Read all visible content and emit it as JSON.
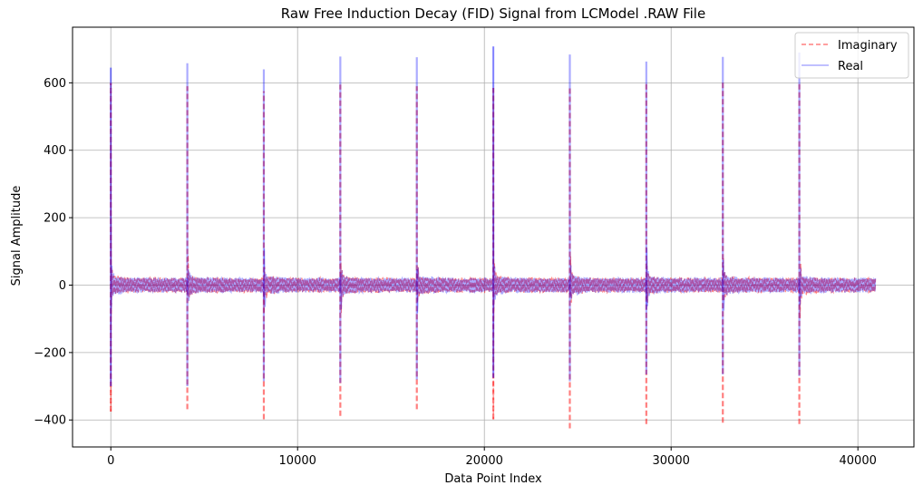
{
  "chart_data": {
    "type": "line",
    "title": "Raw Free Induction Decay (FID) Signal from LCModel .RAW File",
    "xlabel": "Data Point Index",
    "ylabel": "Signal Amplitude",
    "xlim": [
      -2050,
      43000
    ],
    "ylim": [
      -480,
      765
    ],
    "xticks": [
      0,
      10000,
      20000,
      30000,
      40000
    ],
    "xtick_labels": [
      "0",
      "10000",
      "20000",
      "30000",
      "40000"
    ],
    "yticks": [
      -400,
      -200,
      0,
      200,
      400,
      600
    ],
    "ytick_labels": [
      "−400",
      "−200",
      "0",
      "200",
      "400",
      "600"
    ],
    "grid": true,
    "legend_position": "top-right",
    "n_points": 40960,
    "segment_length": 4096,
    "series": [
      {
        "name": "Imaginary",
        "color": "#ff0000",
        "alpha": 0.5,
        "linestyle": "dashed",
        "noise_band": [
          -22,
          22
        ],
        "peaks": [
          {
            "x": 0,
            "max": 600,
            "min": -375
          },
          {
            "x": 4096,
            "max": 590,
            "min": -368
          },
          {
            "x": 8192,
            "max": 575,
            "min": -398
          },
          {
            "x": 12288,
            "max": 595,
            "min": -388
          },
          {
            "x": 16384,
            "max": 590,
            "min": -368
          },
          {
            "x": 20480,
            "max": 585,
            "min": -398
          },
          {
            "x": 24576,
            "max": 590,
            "min": -425
          },
          {
            "x": 28672,
            "max": 600,
            "min": -412
          },
          {
            "x": 32768,
            "max": 600,
            "min": -408
          },
          {
            "x": 36864,
            "max": 600,
            "min": -412
          }
        ]
      },
      {
        "name": "Real",
        "color": "#0000ff",
        "alpha": 0.33,
        "linestyle": "solid",
        "noise_band": [
          -22,
          22
        ],
        "peaks": [
          {
            "x": 0,
            "max": 645,
            "min": -300
          },
          {
            "x": 4096,
            "max": 658,
            "min": -300
          },
          {
            "x": 8192,
            "max": 640,
            "min": -285
          },
          {
            "x": 12288,
            "max": 678,
            "min": -290
          },
          {
            "x": 16384,
            "max": 676,
            "min": -280
          },
          {
            "x": 20480,
            "max": 708,
            "min": -275
          },
          {
            "x": 24576,
            "max": 684,
            "min": -285
          },
          {
            "x": 28672,
            "max": 663,
            "min": -265
          },
          {
            "x": 32768,
            "max": 677,
            "min": -265
          },
          {
            "x": 36864,
            "max": 690,
            "min": -270
          }
        ]
      }
    ]
  }
}
